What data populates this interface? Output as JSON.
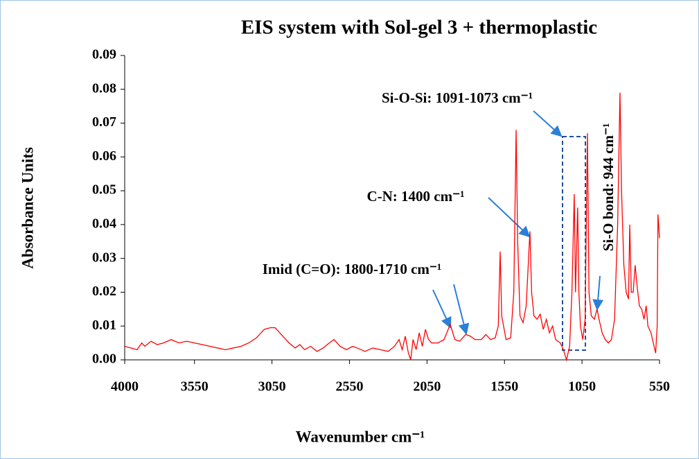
{
  "chart_data": {
    "type": "line",
    "title": "EIS system with Sol-gel 3 + thermoplastic",
    "xlabel": "Wavenumber cm⁻¹",
    "ylabel": "Absorbance Units",
    "annotations": [
      "Si-O-Si: 1091-1073 cm⁻¹",
      "C-N: 1400 cm⁻¹",
      "Imid (C=O): 1800-1710 cm⁻¹",
      "Si-O bond: 944 cm⁻¹"
    ],
    "xlim": [
      4000,
      550
    ],
    "xticks": [
      4000,
      3550,
      3050,
      2550,
      2050,
      1550,
      1050,
      550
    ],
    "ylim": [
      0,
      0.09
    ],
    "yticks": [
      {
        "value": 0,
        "label": "0.00"
      },
      {
        "value": 0.01,
        "label": "0.01"
      },
      {
        "value": 0.02,
        "label": "0.02"
      },
      {
        "value": 0.03,
        "label": "0.03"
      },
      {
        "value": 0.04,
        "label": "0.04"
      },
      {
        "value": 0.05,
        "label": "0.05"
      },
      {
        "value": 0.06,
        "label": "0.06"
      },
      {
        "value": 0.07,
        "label": "0.07"
      },
      {
        "value": 0.08,
        "label": "0.08"
      },
      {
        "value": 0.09,
        "label": "0.09"
      }
    ],
    "color": "#ff0000",
    "x": [
      4000,
      3960,
      3920,
      3890,
      3870,
      3830,
      3790,
      3750,
      3700,
      3650,
      3600,
      3550,
      3500,
      3450,
      3400,
      3350,
      3300,
      3250,
      3200,
      3150,
      3100,
      3060,
      3030,
      3000,
      2970,
      2940,
      2900,
      2870,
      2840,
      2800,
      2760,
      2720,
      2680,
      2650,
      2610,
      2570,
      2530,
      2500,
      2450,
      2400,
      2350,
      2300,
      2260,
      2230,
      2210,
      2190,
      2170,
      2155,
      2140,
      2120,
      2100,
      2080,
      2060,
      2040,
      2020,
      1980,
      1940,
      1900,
      1870,
      1840,
      1800,
      1770,
      1740,
      1700,
      1670,
      1640,
      1610,
      1590,
      1578,
      1568,
      1540,
      1510,
      1490,
      1475,
      1465,
      1450,
      1430,
      1410,
      1386,
      1375,
      1360,
      1340,
      1320,
      1300,
      1280,
      1260,
      1240,
      1220,
      1190,
      1170,
      1150,
      1130,
      1115,
      1100,
      1092,
      1078,
      1070,
      1060,
      1045,
      1030,
      1015,
      1005,
      990,
      970,
      953,
      940,
      920,
      900,
      880,
      860,
      840,
      820,
      805,
      795,
      780,
      765,
      750,
      742,
      732,
      720,
      707,
      695,
      680,
      665,
      650,
      636,
      625,
      605,
      590,
      575,
      565,
      560,
      550
    ],
    "values": [
      0.004,
      0.0035,
      0.003,
      0.005,
      0.004,
      0.0055,
      0.0045,
      0.005,
      0.006,
      0.005,
      0.0055,
      0.005,
      0.0045,
      0.004,
      0.0035,
      0.003,
      0.0035,
      0.004,
      0.005,
      0.0065,
      0.009,
      0.0095,
      0.0095,
      0.008,
      0.0065,
      0.005,
      0.0035,
      0.0045,
      0.003,
      0.004,
      0.0025,
      0.0035,
      0.005,
      0.006,
      0.004,
      0.003,
      0.004,
      0.0035,
      0.0025,
      0.0035,
      0.003,
      0.0025,
      0.004,
      0.006,
      0.003,
      0.007,
      0.002,
      0,
      0.006,
      0.003,
      0.008,
      0.004,
      0.009,
      0.006,
      0.005,
      0.005,
      0.006,
      0.0105,
      0.006,
      0.0055,
      0.0075,
      0.007,
      0.006,
      0.006,
      0.0075,
      0.006,
      0.0065,
      0.01,
      0.032,
      0.013,
      0.006,
      0.0065,
      0.02,
      0.068,
      0.035,
      0.013,
      0.011,
      0.016,
      0.038,
      0.02,
      0.013,
      0.012,
      0.0135,
      0.009,
      0.012,
      0.008,
      0.01,
      0.006,
      0.005,
      0.003,
      0,
      0.004,
      0.02,
      0.049,
      0.02,
      0.045,
      0.02,
      0.01,
      0.006,
      0.012,
      0.067,
      0.02,
      0.013,
      0.012,
      0.015,
      0.012,
      0.008,
      0.006,
      0.005,
      0.006,
      0.012,
      0.04,
      0.079,
      0.05,
      0.028,
      0.02,
      0.018,
      0.04,
      0.02,
      0.02,
      0.028,
      0.022,
      0.016,
      0.015,
      0.012,
      0.016,
      0.01,
      0.008,
      0.005,
      0.002,
      0.01,
      0.043,
      0.036
    ]
  }
}
